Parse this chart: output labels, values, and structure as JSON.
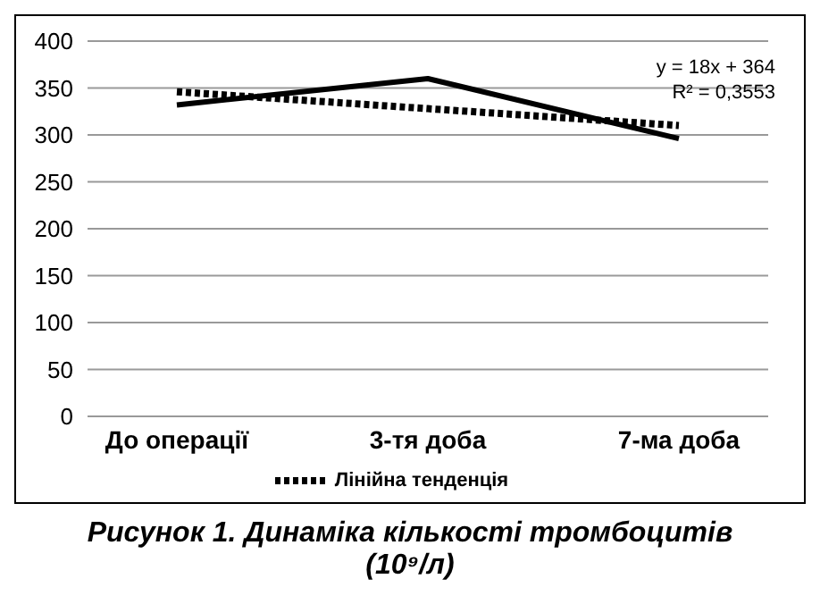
{
  "chart_data": {
    "type": "line",
    "title": "Рисунок 1. Динаміка кількості тромбоцитів (10⁹/л)",
    "categories": [
      "До операції",
      "3-тя доба",
      "7-ма доба"
    ],
    "series": [
      {
        "color": "#000000",
        "values": [
          332,
          360,
          296
        ]
      },
      {
        "name": "Лінійна тенденція",
        "color": "#000000",
        "values": [
          346,
          328,
          310
        ],
        "line_style": "dotted"
      }
    ],
    "ylim": [
      0,
      400
    ],
    "yticks": [
      0,
      50,
      100,
      150,
      200,
      250,
      300,
      350,
      400
    ],
    "grid": "y",
    "legend": "bottom",
    "marker": "none",
    "annotations": [
      "y = 18x + 364",
      "R² = 0,3553"
    ]
  }
}
